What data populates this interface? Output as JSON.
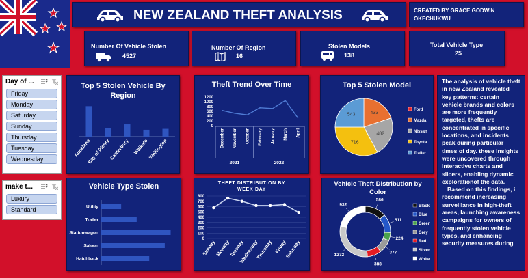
{
  "header": {
    "title": "NEW ZEALAND THEFT ANALYSIS",
    "credit": "CREATED BY GRACE GODWIN OKECHUKWU"
  },
  "kpis": [
    {
      "label": "Number Of Vehicle Stolen",
      "value": "4527",
      "icon": "truck-icon"
    },
    {
      "label": "Number Of Region",
      "value": "16",
      "icon": "map-icon"
    },
    {
      "label": "Stolen Models",
      "value": "138",
      "icon": "bus-icon"
    },
    {
      "label": "Total Vehicle Type",
      "value": "25",
      "icon": ""
    }
  ],
  "slicers": {
    "day": {
      "title": "Day of ...",
      "items": [
        "Friday",
        "Monday",
        "Saturday",
        "Sunday",
        "Thursday",
        "Tuesday",
        "Wednesday"
      ]
    },
    "make": {
      "title": "make t...",
      "items": [
        "Luxury",
        "Standard"
      ]
    }
  },
  "charts": {
    "region": {
      "title": "Top 5 Stolen Vehicle By Region"
    },
    "trend": {
      "title": "Theft Trend Over Time"
    },
    "model": {
      "title": "Top 5 Stolen Model"
    },
    "type": {
      "title": "Vehicle Type Stolen"
    },
    "week": {
      "title": "THEFT DISTRIBUTION BY WEEK DAY"
    },
    "color": {
      "title": "Vehicle Theft Distribution by Color"
    }
  },
  "commentary": [
    "The analysis of vehicle theft in new Zealand revealed key patterns: certain vehicle brands and colors are more frequently targeted, thefts are concentrated in specific locations, and incidents peak during particular times of day. these insights were uncovered through interactive charts and slicers, enabling dynamic explorationof the data.",
    "Based on this findings, i recommend increasing surveillance in high-theft areas, launching awareness campaigns for owners of frequently stolen vehicle types, and enhancing security measures during"
  ],
  "colors": {
    "background": "#d2102a",
    "panel": "#12237a",
    "bar": "#2f55c0",
    "line": "#4f7bd4"
  },
  "chart_data": [
    {
      "type": "bar",
      "categories": [
        "Auckland",
        "Bay of Plenty",
        "Canterbury",
        "Waikato",
        "Wellington"
      ],
      "values": [
        1640,
        450,
        660,
        370,
        420
      ],
      "ylim": [
        0,
        1800
      ]
    },
    {
      "type": "line",
      "x": [
        "December",
        "November",
        "October",
        "February",
        "January",
        "March",
        "April"
      ],
      "x_groups": [
        {
          "label": "2021",
          "span": 3
        },
        {
          "label": "2022",
          "span": 4
        }
      ],
      "values": [
        640,
        520,
        450,
        750,
        720,
        1050,
        320
      ],
      "yticks": [
        0,
        200,
        400,
        600,
        800,
        1000,
        1200
      ],
      "ylim": [
        0,
        1200
      ]
    },
    {
      "type": "pie",
      "labels": [
        "Ford",
        "Mazda",
        "Nissan",
        "Toyota",
        "Trailer"
      ],
      "values": [
        0,
        433,
        482,
        716,
        543
      ],
      "value_labels": [
        "",
        "433",
        "482",
        "716",
        "543"
      ],
      "colors": [
        "#e8242a",
        "#e87030",
        "#a6a6a6",
        "#f4c00f",
        "#5b9bd5"
      ]
    },
    {
      "type": "bar",
      "orientation": "horizontal",
      "categories": [
        "Utility",
        "Trailer",
        "Stationwagon",
        "Saloon",
        "Hatchback"
      ],
      "values": [
        270,
        480,
        940,
        860,
        650
      ],
      "xlim": [
        0,
        1000
      ]
    },
    {
      "type": "line",
      "x": [
        "Sunday",
        "Monday",
        "Tuesday",
        "Wednesday",
        "Thursday",
        "Friday",
        "Saturday"
      ],
      "values": [
        580,
        760,
        700,
        620,
        620,
        640,
        490
      ],
      "yticks": [
        0,
        100,
        200,
        300,
        400,
        500,
        600,
        700,
        800
      ],
      "ylim": [
        0,
        800
      ]
    },
    {
      "type": "pie",
      "donut": true,
      "labels": [
        "Black",
        "Blue",
        "Green",
        "Grey",
        "Red",
        "Silver",
        "White"
      ],
      "values": [
        586,
        511,
        224,
        377,
        388,
        1272,
        932
      ],
      "value_labels": [
        "586",
        "511",
        "224",
        "377",
        "388",
        "1272",
        "932"
      ],
      "colors": [
        "#111111",
        "#2457c8",
        "#4ba34c",
        "#9a9a9a",
        "#e51b23",
        "#c8c8c8",
        "#ffffff"
      ]
    }
  ]
}
